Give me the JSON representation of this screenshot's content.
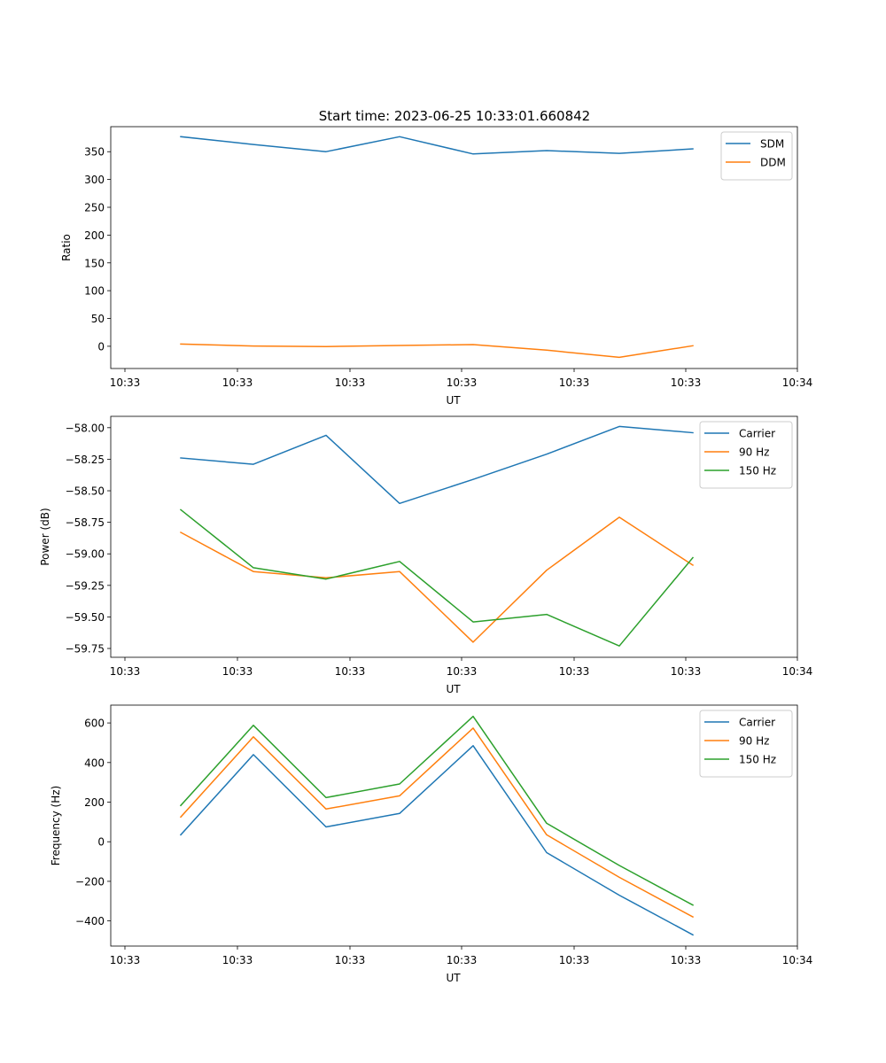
{
  "suptitle": "Start time: 2023-06-25 10:33:01.660842",
  "colors": {
    "blue": "#1f77b4",
    "orange": "#ff7f0e",
    "green": "#2ca02c"
  },
  "chart_data": [
    {
      "type": "line",
      "ylabel": "Ratio",
      "xlabel": "UT",
      "x_tick_labels": [
        "10:33",
        "10:33",
        "10:33",
        "10:33",
        "10:33",
        "10:33",
        "10:34"
      ],
      "y_ticks": [
        0,
        50,
        100,
        150,
        200,
        250,
        300,
        350
      ],
      "ylim": [
        -40,
        395
      ],
      "grid": false,
      "legend_position": "top-right",
      "series": [
        {
          "name": "SDM",
          "color": "#1f77b4",
          "values": [
            377,
            363,
            350,
            377,
            346,
            352,
            347,
            355
          ]
        },
        {
          "name": "DDM",
          "color": "#ff7f0e",
          "values": [
            4,
            0.5,
            -0.5,
            1.5,
            3,
            -7,
            -20,
            1
          ]
        }
      ]
    },
    {
      "type": "line",
      "ylabel": "Power (dB)",
      "xlabel": "UT",
      "x_tick_labels": [
        "10:33",
        "10:33",
        "10:33",
        "10:33",
        "10:33",
        "10:33",
        "10:34"
      ],
      "y_ticks": [
        -59.75,
        -59.5,
        -59.25,
        -59.0,
        -58.75,
        -58.5,
        -58.25,
        -58.0
      ],
      "y_tick_labels": [
        "−59.75",
        "−59.50",
        "−59.25",
        "−59.00",
        "−58.75",
        "−58.50",
        "−58.25",
        "−58.00"
      ],
      "ylim": [
        -59.82,
        -57.91
      ],
      "grid": false,
      "legend_position": "top-right",
      "series": [
        {
          "name": "Carrier",
          "color": "#1f77b4",
          "values": [
            -58.24,
            -58.29,
            -58.06,
            -58.6,
            -58.41,
            -58.21,
            -57.99,
            -58.04
          ]
        },
        {
          "name": "90 Hz",
          "color": "#ff7f0e",
          "values": [
            -58.83,
            -59.14,
            -59.19,
            -59.14,
            -59.7,
            -59.13,
            -58.71,
            -59.09
          ]
        },
        {
          "name": "150 Hz",
          "color": "#2ca02c",
          "values": [
            -58.65,
            -59.11,
            -59.2,
            -59.06,
            -59.54,
            -59.48,
            -59.73,
            -59.03
          ]
        }
      ]
    },
    {
      "type": "line",
      "ylabel": "Frequency (Hz)",
      "xlabel": "UT",
      "x_tick_labels": [
        "10:33",
        "10:33",
        "10:33",
        "10:33",
        "10:33",
        "10:33",
        "10:34"
      ],
      "y_ticks": [
        -400,
        -200,
        0,
        200,
        400,
        600
      ],
      "y_tick_labels": [
        "−400",
        "−200",
        "0",
        "200",
        "400",
        "600"
      ],
      "ylim": [
        -527,
        690
      ],
      "grid": false,
      "legend_position": "top-right",
      "series": [
        {
          "name": "Carrier",
          "color": "#1f77b4",
          "values": [
            35,
            440,
            75,
            143,
            485,
            -55,
            -270,
            -470
          ]
        },
        {
          "name": "90 Hz",
          "color": "#ff7f0e",
          "values": [
            125,
            530,
            165,
            232,
            574,
            35,
            -180,
            -380
          ]
        },
        {
          "name": "150 Hz",
          "color": "#2ca02c",
          "values": [
            183,
            588,
            223,
            292,
            633,
            93,
            -120,
            -320
          ]
        }
      ]
    }
  ]
}
